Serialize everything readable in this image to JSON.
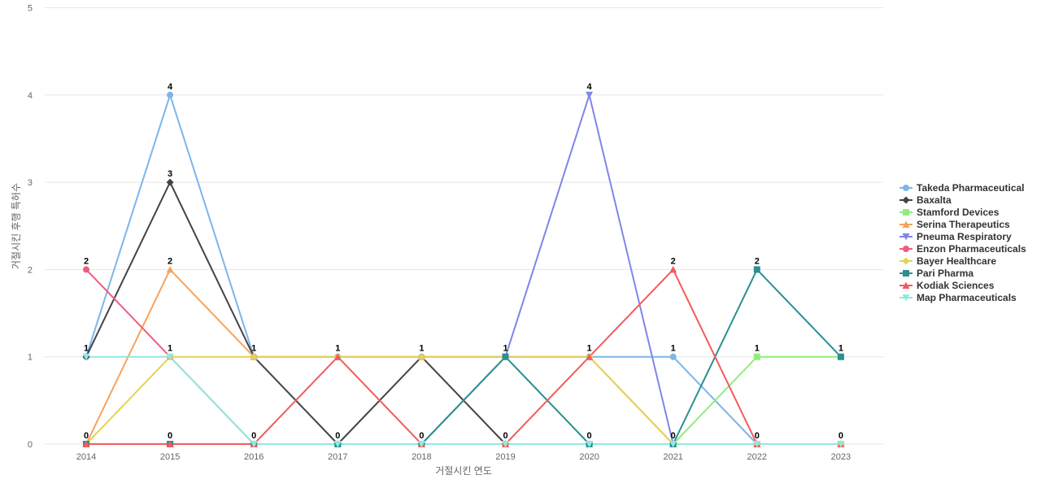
{
  "chart_data": {
    "type": "line",
    "xlabel": "거절시킨 연도",
    "ylabel": "거절시킨 후행 특허수",
    "x": [
      "2014",
      "2015",
      "2016",
      "2017",
      "2018",
      "2019",
      "2020",
      "2021",
      "2022",
      "2023"
    ],
    "ylim": [
      0,
      5
    ],
    "yticks": [
      0,
      1,
      2,
      3,
      4,
      5
    ],
    "grid": "horizontal",
    "legend_position": "right",
    "series": [
      {
        "name": "Takeda Pharmaceutical",
        "color": "#7cb5ec",
        "marker": "circle",
        "values": [
          1,
          4,
          1,
          1,
          1,
          1,
          1,
          1,
          0,
          0
        ]
      },
      {
        "name": "Baxalta",
        "color": "#434348",
        "marker": "diamond",
        "values": [
          1,
          3,
          1,
          0,
          1,
          0,
          0,
          0,
          0,
          0
        ]
      },
      {
        "name": "Stamford Devices",
        "color": "#90ed7d",
        "marker": "square",
        "values": [
          0,
          0,
          0,
          0,
          0,
          0,
          0,
          0,
          1,
          1
        ]
      },
      {
        "name": "Serina Therapeutics",
        "color": "#f7a35c",
        "marker": "triangle",
        "values": [
          0,
          2,
          1,
          1,
          1,
          1,
          1,
          0,
          0,
          0
        ]
      },
      {
        "name": "Pneuma Respiratory",
        "color": "#8085e9",
        "marker": "triangle-down",
        "values": [
          0,
          0,
          0,
          0,
          0,
          1,
          4,
          0,
          0,
          0
        ]
      },
      {
        "name": "Enzon Pharmaceuticals",
        "color": "#f15c80",
        "marker": "circle",
        "values": [
          2,
          1,
          0,
          0,
          0,
          0,
          0,
          0,
          0,
          0
        ]
      },
      {
        "name": "Bayer Healthcare",
        "color": "#e4d354",
        "marker": "diamond",
        "values": [
          0,
          1,
          1,
          1,
          1,
          1,
          1,
          0,
          0,
          0
        ]
      },
      {
        "name": "Pari Pharma",
        "color": "#2b908f",
        "marker": "square",
        "values": [
          0,
          0,
          0,
          0,
          0,
          1,
          0,
          0,
          2,
          1
        ]
      },
      {
        "name": "Kodiak Sciences",
        "color": "#f45b5b",
        "marker": "triangle",
        "values": [
          0,
          0,
          0,
          1,
          0,
          0,
          1,
          2,
          0,
          0
        ]
      },
      {
        "name": "Map Pharmaceuticals",
        "color": "#91e8e1",
        "marker": "triangle-down",
        "values": [
          1,
          1,
          0,
          0,
          0,
          0,
          0,
          0,
          0,
          0
        ]
      }
    ],
    "data_labels": [
      {
        "x": "2014",
        "value": 1
      },
      {
        "x": "2014",
        "value": 0
      },
      {
        "x": "2014",
        "value": 2
      },
      {
        "x": "2015",
        "value": 4
      },
      {
        "x": "2015",
        "value": 3
      },
      {
        "x": "2015",
        "value": 2
      },
      {
        "x": "2015",
        "value": 1
      },
      {
        "x": "2015",
        "value": 0
      },
      {
        "x": "2016",
        "value": 1
      },
      {
        "x": "2016",
        "value": 0
      },
      {
        "x": "2017",
        "value": 1
      },
      {
        "x": "2017",
        "value": 0
      },
      {
        "x": "2018",
        "value": 1
      },
      {
        "x": "2018",
        "value": 0
      },
      {
        "x": "2019",
        "value": 1
      },
      {
        "x": "2019",
        "value": 0
      },
      {
        "x": "2020",
        "value": 4
      },
      {
        "x": "2020",
        "value": 1
      },
      {
        "x": "2020",
        "value": 0
      },
      {
        "x": "2021",
        "value": 2
      },
      {
        "x": "2021",
        "value": 1
      },
      {
        "x": "2021",
        "value": 0
      },
      {
        "x": "2022",
        "value": 2
      },
      {
        "x": "2022",
        "value": 1
      },
      {
        "x": "2022",
        "value": 0
      },
      {
        "x": "2023",
        "value": 1
      },
      {
        "x": "2023",
        "value": 0
      }
    ]
  }
}
